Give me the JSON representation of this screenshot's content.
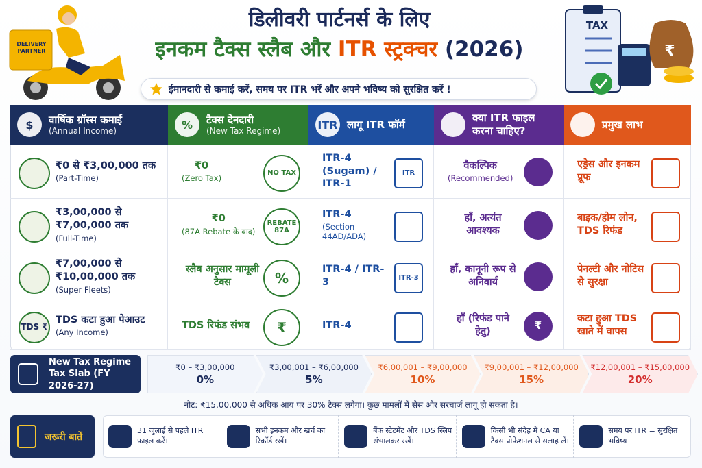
{
  "header": {
    "title_line1": "डिलीवरी पार्टनर्स के लिए",
    "title_line2": [
      "इनकम टैक्स स्लैब और",
      "ITR स्ट्रक्चर",
      "(2026)"
    ],
    "tagline": "ईमानदारी से कमाई करें, समय पर ITR भरें और अपने भविष्य को सुरक्षित करें !",
    "badge": "DELIVERY PARTNER",
    "clipboard": "TAX",
    "coin": "₹"
  },
  "table": {
    "columns": [
      {
        "title": "वार्षिक ग्रॉस्स कमाई",
        "subtitle": "(Annual Income)",
        "icon": "$"
      },
      {
        "title": "टैक्स देनदारी",
        "subtitle": "(New Tax Regime)",
        "icon": "%"
      },
      {
        "title": "लागू ITR फॉर्म",
        "icon": "ITR"
      },
      {
        "title": "क्या ITR फाइल करना चाहिए?"
      },
      {
        "title": "प्रमुख लाभ"
      }
    ],
    "rows": [
      [
        {
          "text": "₹0 से ₹3,00,000 तक",
          "note": "(Part-Time)"
        },
        {
          "text": "₹0",
          "note": "(Zero Tax)",
          "badge": "NO TAX"
        },
        {
          "text": "ITR-4 (Sugam) / ITR-1",
          "badge": "ITR"
        },
        {
          "text": "वैकल्पिक",
          "note": "(Recommended)"
        },
        {
          "text": "एड्रेस और इनकम प्रूफ"
        }
      ],
      [
        {
          "text": "₹3,00,000 से ₹7,00,000 तक",
          "note": "(Full-Time)"
        },
        {
          "text": "₹0",
          "note": "(87A Rebate के बाद)",
          "badge": "REBATE 87A"
        },
        {
          "text": "ITR-4",
          "note": "(Section 44AD/ADA)"
        },
        {
          "text": "हाँ, अत्यंत आवश्यक"
        },
        {
          "text": "बाइक/होम लोन, TDS रिफंड"
        }
      ],
      [
        {
          "text": "₹7,00,000 से ₹10,00,000 तक",
          "note": "(Super Fleets)"
        },
        {
          "text": "स्लैब अनुसार मामूली टैक्स",
          "badge": "%"
        },
        {
          "text": "ITR-4 / ITR-3",
          "badge": "ITR-3"
        },
        {
          "text": "हाँ, कानूनी रूप से अनिवार्य"
        },
        {
          "text": "पेनल्टी और नोटिस से सुरक्षा"
        }
      ],
      [
        {
          "text": "TDS कटा हुआ पेआउट",
          "note": "(Any Income)",
          "badge": "TDS ₹"
        },
        {
          "text": "TDS रिफंड संभव",
          "badge": "₹"
        },
        {
          "text": "ITR-4"
        },
        {
          "text": "हाँ (रिफंड पाने हेतु)",
          "badge": "₹"
        },
        {
          "text": "कटा हुआ TDS खाते में वापस"
        }
      ]
    ]
  },
  "slabs": {
    "label": "New Tax Regime Tax Slab (FY 2026-27)",
    "items": [
      {
        "range": "₹0 – ₹3,00,000",
        "rate": "0%"
      },
      {
        "range": "₹3,00,001 – ₹6,00,000",
        "rate": "5%"
      },
      {
        "range": "₹6,00,001 – ₹9,00,000",
        "rate": "10%"
      },
      {
        "range": "₹9,00,001 – ₹12,00,000",
        "rate": "15%"
      },
      {
        "range": "₹12,00,001 – ₹15,00,000",
        "rate": "20%"
      }
    ]
  },
  "note": "नोट: ₹15,00,000 से अधिक आय पर 30% टैक्स लगेगा। कुछ मामलों में सेस और सरचार्ज लागू हो सकता है।",
  "footer": {
    "label": "जरूरी बातें",
    "tips": [
      "31 जुलाई से पहले ITR फाइल करें।",
      "सभी इनकम और खर्च का रिकॉर्ड रखें।",
      "बैंक स्टेटमेंट और TDS स्लिप संभालकर रखें।",
      "किसी भी संदेह में CA या टैक्स प्रोफेशनल से सलाह लें।",
      "समय पर ITR = सुरक्षित भविष्य"
    ]
  }
}
